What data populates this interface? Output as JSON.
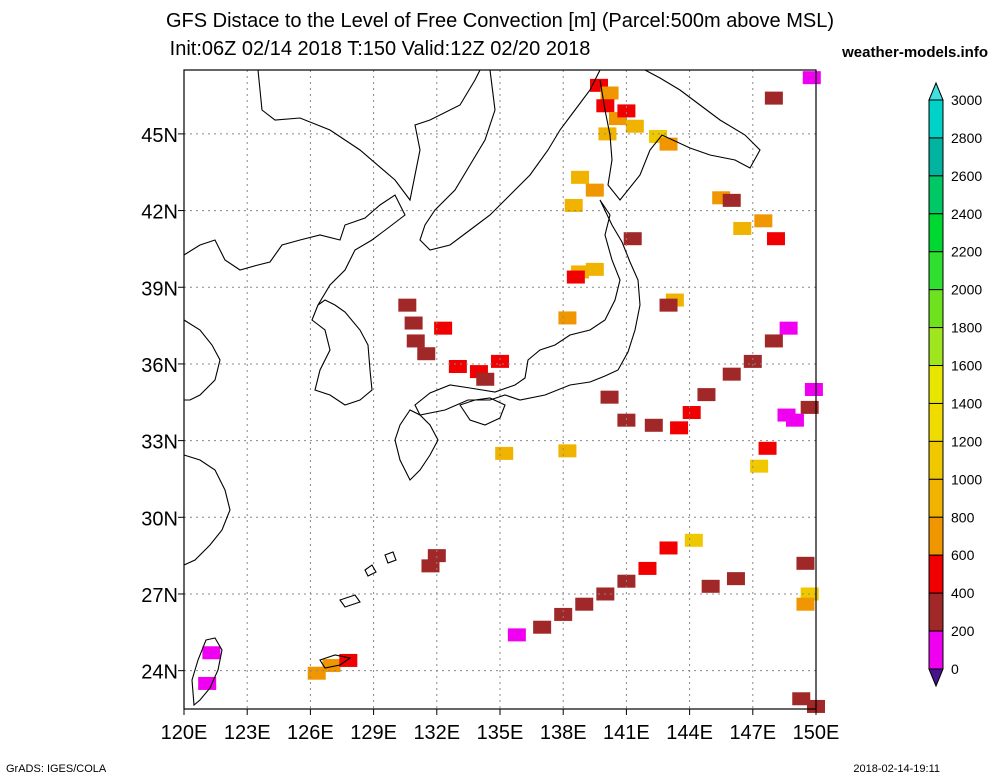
{
  "title": "GFS Distace to the Level of Free Convection [m] (Parcel:500m above MSL)",
  "subtitle": "Init:06Z 02/14 2018 T:150 Valid:12Z 02/20 2018",
  "brand": "weather-models.info",
  "footer_left": "GrADS: IGES/COLA",
  "footer_right": "2018-02-14-19:11",
  "lon_labels": [
    "120E",
    "123E",
    "126E",
    "129E",
    "132E",
    "135E",
    "138E",
    "141E",
    "144E",
    "147E",
    "150E"
  ],
  "lat_labels": [
    "45N",
    "42N",
    "39N",
    "36N",
    "33N",
    "30N",
    "27N",
    "24N"
  ],
  "colorbar": {
    "labels": [
      "3000",
      "2800",
      "2600",
      "2400",
      "2200",
      "2000",
      "1800",
      "1600",
      "1400",
      "1200",
      "1000",
      "800",
      "600",
      "400",
      "200",
      "0"
    ],
    "colors": [
      "#00d2c8",
      "#00b4a0",
      "#00c864",
      "#00d832",
      "#30e030",
      "#6ee21e",
      "#a0e61e",
      "#e6e600",
      "#f0dc00",
      "#f0c800",
      "#f0b400",
      "#f09600",
      "#f00000",
      "#a02828",
      "#f000f0",
      "#46148c"
    ],
    "top_arrow": "#40e0e0",
    "bottom_arrow": "#46148c"
  },
  "map": {
    "lon_range": [
      120,
      150
    ],
    "lat_range": [
      22.5,
      47.5
    ],
    "lon_ticks": [
      120,
      123,
      126,
      129,
      132,
      135,
      138,
      141,
      144,
      147,
      150
    ],
    "lat_ticks": [
      45,
      42,
      39,
      36,
      33,
      30,
      27,
      24
    ]
  },
  "field_cells": [
    {
      "lon": 139.7,
      "lat": 46.9,
      "v": 600
    },
    {
      "lon": 140.2,
      "lat": 46.6,
      "v": 800
    },
    {
      "lon": 140.0,
      "lat": 46.1,
      "v": 600
    },
    {
      "lon": 140.6,
      "lat": 45.6,
      "v": 800
    },
    {
      "lon": 141.0,
      "lat": 45.9,
      "v": 600
    },
    {
      "lon": 141.4,
      "lat": 45.3,
      "v": 1000
    },
    {
      "lon": 140.1,
      "lat": 45.0,
      "v": 1000
    },
    {
      "lon": 142.5,
      "lat": 44.9,
      "v": 1200
    },
    {
      "lon": 143.0,
      "lat": 44.6,
      "v": 900
    },
    {
      "lon": 138.8,
      "lat": 43.3,
      "v": 1000
    },
    {
      "lon": 139.5,
      "lat": 42.8,
      "v": 900
    },
    {
      "lon": 138.5,
      "lat": 42.2,
      "v": 1000
    },
    {
      "lon": 145.5,
      "lat": 42.5,
      "v": 900
    },
    {
      "lon": 146.0,
      "lat": 42.4,
      "v": 500
    },
    {
      "lon": 146.5,
      "lat": 41.3,
      "v": 1000
    },
    {
      "lon": 147.5,
      "lat": 41.6,
      "v": 900
    },
    {
      "lon": 148.1,
      "lat": 40.9,
      "v": 600
    },
    {
      "lon": 141.3,
      "lat": 40.9,
      "v": 500
    },
    {
      "lon": 138.8,
      "lat": 39.6,
      "v": 1000
    },
    {
      "lon": 138.6,
      "lat": 39.4,
      "v": 600
    },
    {
      "lon": 139.5,
      "lat": 39.7,
      "v": 1000
    },
    {
      "lon": 143.3,
      "lat": 38.5,
      "v": 1000
    },
    {
      "lon": 143.0,
      "lat": 38.3,
      "v": 500
    },
    {
      "lon": 138.2,
      "lat": 37.8,
      "v": 900
    },
    {
      "lon": 130.6,
      "lat": 38.3,
      "v": 450
    },
    {
      "lon": 130.9,
      "lat": 37.6,
      "v": 500
    },
    {
      "lon": 131.0,
      "lat": 36.9,
      "v": 500
    },
    {
      "lon": 131.5,
      "lat": 36.4,
      "v": 400
    },
    {
      "lon": 132.3,
      "lat": 37.4,
      "v": 600
    },
    {
      "lon": 133.0,
      "lat": 35.9,
      "v": 600
    },
    {
      "lon": 134.0,
      "lat": 35.7,
      "v": 600
    },
    {
      "lon": 135.0,
      "lat": 36.1,
      "v": 600
    },
    {
      "lon": 134.3,
      "lat": 35.4,
      "v": 400
    },
    {
      "lon": 140.2,
      "lat": 34.7,
      "v": 500
    },
    {
      "lon": 141.0,
      "lat": 33.8,
      "v": 400
    },
    {
      "lon": 142.3,
      "lat": 33.6,
      "v": 500
    },
    {
      "lon": 143.5,
      "lat": 33.5,
      "v": 600
    },
    {
      "lon": 144.1,
      "lat": 34.1,
      "v": 600
    },
    {
      "lon": 144.8,
      "lat": 34.8,
      "v": 500
    },
    {
      "lon": 146.0,
      "lat": 35.6,
      "v": 450
    },
    {
      "lon": 147.0,
      "lat": 36.1,
      "v": 400
    },
    {
      "lon": 148.0,
      "lat": 36.9,
      "v": 400
    },
    {
      "lon": 147.3,
      "lat": 32.0,
      "v": 1200
    },
    {
      "lon": 147.7,
      "lat": 32.7,
      "v": 600
    },
    {
      "lon": 149.7,
      "lat": 34.3,
      "v": 400
    },
    {
      "lon": 149.0,
      "lat": 33.8,
      "v": 250
    },
    {
      "lon": 138.2,
      "lat": 32.6,
      "v": 1000
    },
    {
      "lon": 135.2,
      "lat": 32.5,
      "v": 1000
    },
    {
      "lon": 132.0,
      "lat": 28.5,
      "v": 500
    },
    {
      "lon": 131.7,
      "lat": 28.1,
      "v": 400
    },
    {
      "lon": 144.2,
      "lat": 29.1,
      "v": 1200
    },
    {
      "lon": 143.0,
      "lat": 28.8,
      "v": 600
    },
    {
      "lon": 142.0,
      "lat": 28.0,
      "v": 600
    },
    {
      "lon": 141.0,
      "lat": 27.5,
      "v": 500
    },
    {
      "lon": 140.0,
      "lat": 27.0,
      "v": 400
    },
    {
      "lon": 139.0,
      "lat": 26.6,
      "v": 400
    },
    {
      "lon": 138.0,
      "lat": 26.2,
      "v": 400
    },
    {
      "lon": 137.0,
      "lat": 25.7,
      "v": 400
    },
    {
      "lon": 135.8,
      "lat": 25.4,
      "v": 200
    },
    {
      "lon": 145.0,
      "lat": 27.3,
      "v": 500
    },
    {
      "lon": 146.2,
      "lat": 27.6,
      "v": 500
    },
    {
      "lon": 149.5,
      "lat": 28.2,
      "v": 500
    },
    {
      "lon": 149.7,
      "lat": 27.0,
      "v": 1200
    },
    {
      "lon": 149.5,
      "lat": 26.6,
      "v": 900
    },
    {
      "lon": 127.0,
      "lat": 24.2,
      "v": 900
    },
    {
      "lon": 127.8,
      "lat": 24.4,
      "v": 600
    },
    {
      "lon": 126.3,
      "lat": 23.9,
      "v": 900
    },
    {
      "lon": 121.1,
      "lat": 23.5,
      "v": 200
    },
    {
      "lon": 121.3,
      "lat": 24.7,
      "v": 200
    },
    {
      "lon": 149.8,
      "lat": 47.2,
      "v": 200
    },
    {
      "lon": 148.0,
      "lat": 46.4,
      "v": 500
    },
    {
      "lon": 148.7,
      "lat": 37.4,
      "v": 200
    },
    {
      "lon": 149.9,
      "lat": 35.0,
      "v": 200
    },
    {
      "lon": 148.6,
      "lat": 34.0,
      "v": 200
    },
    {
      "lon": 149.3,
      "lat": 22.9,
      "v": 500
    },
    {
      "lon": 150.0,
      "lat": 22.6,
      "v": 500
    }
  ]
}
